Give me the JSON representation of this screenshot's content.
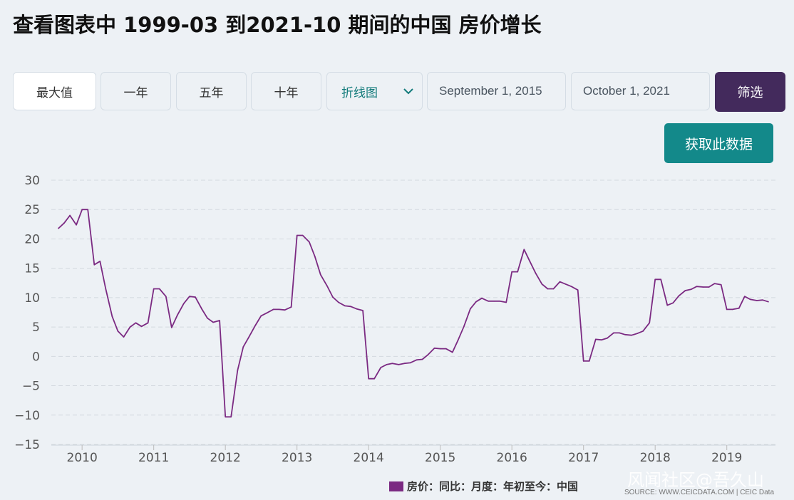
{
  "page_title": "查看图表中 1999-03 到2021-10 期间的中国 房价增长",
  "toolbar": {
    "max_label": "最大值",
    "one_year_label": "一年",
    "five_year_label": "五年",
    "ten_year_label": "十年",
    "chart_type_value": "折线图",
    "start_date": "September 1, 2015",
    "end_date": "October 1, 2021",
    "filter_label": "筛选"
  },
  "get_data_label": "获取此数据",
  "legend_label": "房价：同比：月度：年初至今：中国",
  "source_label": "SOURCE: WWW.CEICDATA.COM | CEIC Data",
  "watermark": "风闻社区@吾久山",
  "colors": {
    "line": "#7b2a82",
    "filter_bg": "#432a5c",
    "get_data_bg": "#13898a"
  },
  "chart_data": {
    "type": "line",
    "ylim": [
      -15,
      30
    ],
    "y_ticks": [
      30,
      25,
      20,
      15,
      10,
      5,
      0,
      -5,
      -10,
      -15
    ],
    "x_ticks": [
      "2010",
      "2011",
      "2012",
      "2013",
      "2014",
      "2015",
      "2016",
      "2017",
      "2018",
      "2019"
    ],
    "grid": true,
    "legend_position": "bottom",
    "x": [
      2009.67,
      2009.75,
      2009.83,
      2009.92,
      2010.0,
      2010.08,
      2010.17,
      2010.25,
      2010.33,
      2010.42,
      2010.5,
      2010.58,
      2010.67,
      2010.75,
      2010.83,
      2010.92,
      2011.0,
      2011.08,
      2011.17,
      2011.25,
      2011.33,
      2011.42,
      2011.5,
      2011.58,
      2011.67,
      2011.75,
      2011.83,
      2011.92,
      2012.0,
      2012.08,
      2012.17,
      2012.25,
      2012.33,
      2012.42,
      2012.5,
      2012.58,
      2012.67,
      2012.75,
      2012.83,
      2012.92,
      2013.0,
      2013.08,
      2013.17,
      2013.25,
      2013.33,
      2013.42,
      2013.5,
      2013.58,
      2013.67,
      2013.75,
      2013.83,
      2013.92,
      2014.0,
      2014.08,
      2014.17,
      2014.25,
      2014.33,
      2014.42,
      2014.5,
      2014.58,
      2014.67,
      2014.75,
      2014.83,
      2014.92,
      2015.0,
      2015.08,
      2015.17,
      2015.25,
      2015.33,
      2015.42,
      2015.5,
      2015.58,
      2015.67,
      2015.75,
      2015.83,
      2015.92,
      2016.0,
      2016.08,
      2016.17,
      2016.25,
      2016.33,
      2016.42,
      2016.5,
      2016.58,
      2016.67,
      2016.75,
      2016.83,
      2016.92,
      2017.0,
      2017.08,
      2017.17,
      2017.25,
      2017.33,
      2017.42,
      2017.5,
      2017.58,
      2017.67,
      2017.75,
      2017.83,
      2017.92,
      2018.0,
      2018.08,
      2018.17,
      2018.25,
      2018.33,
      2018.42,
      2018.5,
      2018.58,
      2018.67,
      2018.75,
      2018.83,
      2018.92,
      2019.0,
      2019.08,
      2019.17,
      2019.25,
      2019.33,
      2019.42,
      2019.5,
      2019.58
    ],
    "series": [
      {
        "values": [
          21.8,
          22.7,
          24.0,
          22.4,
          25.0,
          25.0,
          15.6,
          16.2,
          11.5,
          6.8,
          4.3,
          3.3,
          5.0,
          5.7,
          5.1,
          5.7,
          11.5,
          11.5,
          10.2,
          4.9,
          7.0,
          9.0,
          10.2,
          10.1,
          8.1,
          6.5,
          5.8,
          6.1,
          -10.3,
          -10.3,
          -2.4,
          1.6,
          3.3,
          5.3,
          6.9,
          7.4,
          8.0,
          8.0,
          7.9,
          8.4,
          20.6,
          20.6,
          19.5,
          17.0,
          13.9,
          12.0,
          10.1,
          9.2,
          8.6,
          8.5,
          8.1,
          7.8,
          -3.8,
          -3.8,
          -1.9,
          -1.4,
          -1.2,
          -1.4,
          -1.2,
          -1.1,
          -0.6,
          -0.5,
          0.3,
          1.4,
          1.3,
          1.3,
          0.7,
          2.8,
          5.1,
          8.1,
          9.3,
          9.9,
          9.4,
          9.4,
          9.4,
          9.2,
          14.4,
          14.4,
          18.2,
          16.2,
          14.2,
          12.3,
          11.5,
          11.5,
          12.7,
          12.3,
          11.9,
          11.3,
          -0.8,
          -0.8,
          2.9,
          2.8,
          3.1,
          4.0,
          4.0,
          3.7,
          3.6,
          3.9,
          4.3,
          5.7,
          13.1,
          13.1,
          8.7,
          9.1,
          10.3,
          11.2,
          11.4,
          11.9,
          11.8,
          11.8,
          12.4,
          12.2,
          8.0,
          8.0,
          8.2,
          10.2,
          9.7,
          9.5,
          9.6,
          9.3
        ]
      }
    ]
  }
}
